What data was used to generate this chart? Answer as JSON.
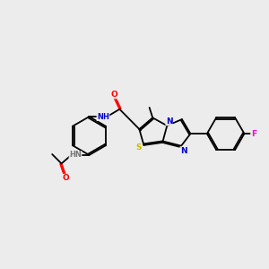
{
  "background_color": "#ececec",
  "figsize": [
    3.0,
    3.0
  ],
  "dpi": 100,
  "colors": {
    "C": "#000000",
    "N": "#0000cc",
    "O": "#ff0000",
    "S": "#ccbb00",
    "F": "#ff00cc",
    "H": "#777777"
  },
  "xlim": [
    0,
    10
  ],
  "ylim": [
    2.5,
    8.0
  ]
}
